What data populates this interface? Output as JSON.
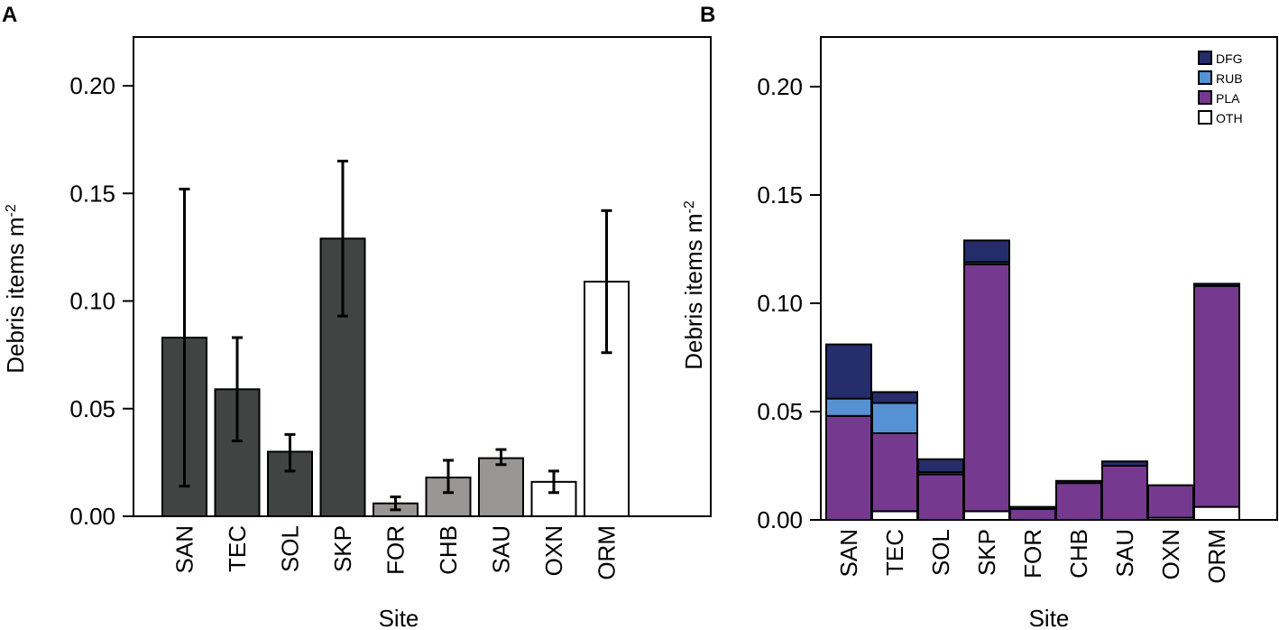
{
  "chart_data": [
    {
      "panel": "A",
      "type": "bar",
      "xlabel": "Site",
      "ylabel": "Debris items m",
      "ylabel_sup": "-2",
      "ylim": [
        0,
        0.22
      ],
      "yticks": [
        "0.00",
        "0.05",
        "0.10",
        "0.15",
        "0.20"
      ],
      "ytick_values": [
        0,
        0.05,
        0.1,
        0.15,
        0.2
      ],
      "categories": [
        "SAN",
        "TEC",
        "SOL",
        "SKP",
        "FOR",
        "CHB",
        "SAU",
        "OXN",
        "ORM"
      ],
      "values": [
        0.083,
        0.059,
        0.03,
        0.129,
        0.006,
        0.018,
        0.027,
        0.016,
        0.109
      ],
      "error_low": [
        0.014,
        0.035,
        0.021,
        0.093,
        0.003,
        0.011,
        0.024,
        0.011,
        0.076
      ],
      "error_high": [
        0.152,
        0.083,
        0.038,
        0.165,
        0.009,
        0.026,
        0.031,
        0.021,
        0.142
      ],
      "bar_colors": [
        "#414443",
        "#414443",
        "#414443",
        "#414443",
        "#999594",
        "#999594",
        "#999594",
        "#ffffff",
        "#ffffff"
      ]
    },
    {
      "panel": "B",
      "type": "bar",
      "stacked": true,
      "xlabel": "Site",
      "ylabel": "Debris items m",
      "ylabel_sup": "-2",
      "ylim": [
        0,
        0.22
      ],
      "yticks": [
        "0.00",
        "0.05",
        "0.10",
        "0.15",
        "0.20"
      ],
      "ytick_values": [
        0,
        0.05,
        0.1,
        0.15,
        0.2
      ],
      "categories": [
        "SAN",
        "TEC",
        "SOL",
        "SKP",
        "FOR",
        "CHB",
        "SAU",
        "OXN",
        "ORM"
      ],
      "legend_position": "top-right",
      "series": [
        {
          "name": "OTH",
          "color": "#ffffff",
          "values": [
            0.0,
            0.004,
            0.0,
            0.004,
            0.0,
            0.0,
            0.0,
            0.001,
            0.006
          ]
        },
        {
          "name": "PLA",
          "color": "#753a8f",
          "values": [
            0.048,
            0.036,
            0.021,
            0.114,
            0.005,
            0.017,
            0.025,
            0.015,
            0.102
          ]
        },
        {
          "name": "RUB",
          "color": "#5692d3",
          "values": [
            0.008,
            0.014,
            0.001,
            0.001,
            0.0,
            0.0,
            0.0,
            0.0,
            0.0
          ]
        },
        {
          "name": "DFG",
          "color": "#252d6b",
          "values": [
            0.025,
            0.005,
            0.006,
            0.01,
            0.001,
            0.001,
            0.002,
            0.0,
            0.001
          ]
        }
      ],
      "legend_order": [
        "DFG",
        "RUB",
        "PLA",
        "OTH"
      ]
    }
  ]
}
